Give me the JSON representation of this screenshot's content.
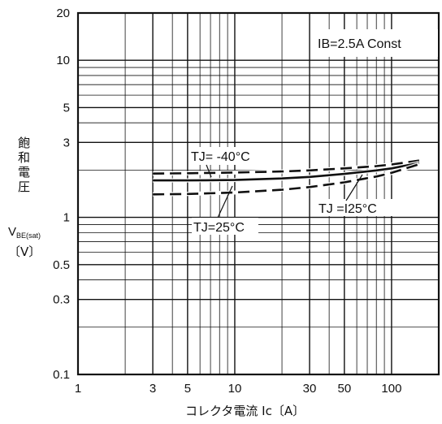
{
  "chart_data": {
    "type": "line",
    "title": "",
    "xlabel": "コレクタ電流 Ic〔A〕",
    "ylabel": [
      "飽",
      "和",
      "電",
      "圧"
    ],
    "ylabel_symbol": "V",
    "ylabel_subscript": "BE(sat)",
    "ylabel_unit": "〔V〕",
    "x_scale": "log",
    "y_scale": "log",
    "xlim": [
      1,
      200
    ],
    "ylim": [
      0.1,
      20
    ],
    "x_ticks": [
      {
        "value": 1,
        "label": "1"
      },
      {
        "value": 3,
        "label": "3"
      },
      {
        "value": 5,
        "label": "5"
      },
      {
        "value": 10,
        "label": "10"
      },
      {
        "value": 30,
        "label": "30"
      },
      {
        "value": 50,
        "label": "50"
      },
      {
        "value": 100,
        "label": "100"
      }
    ],
    "y_ticks": [
      {
        "value": 0.1,
        "label": "0.1"
      },
      {
        "value": 0.3,
        "label": "0.3"
      },
      {
        "value": 0.5,
        "label": "0.5"
      },
      {
        "value": 1,
        "label": "1"
      },
      {
        "value": 3,
        "label": "3"
      },
      {
        "value": 5,
        "label": "5"
      },
      {
        "value": 10,
        "label": "10"
      },
      {
        "value": 20,
        "label": "20"
      }
    ],
    "grid": true,
    "legend": "none",
    "condition_label": "IB=2.5A Const",
    "series": [
      {
        "name": "Tj=-40°C",
        "style": "dashed",
        "x": [
          3,
          5,
          10,
          20,
          30,
          50,
          80,
          100,
          150
        ],
        "y": [
          1.9,
          1.91,
          1.93,
          1.96,
          1.99,
          2.05,
          2.12,
          2.17,
          2.3
        ]
      },
      {
        "name": "Tj=25°C",
        "style": "solid",
        "x": [
          3,
          5,
          10,
          20,
          30,
          50,
          80,
          100,
          150
        ],
        "y": [
          1.72,
          1.72,
          1.73,
          1.77,
          1.81,
          1.89,
          1.99,
          2.05,
          2.22
        ]
      },
      {
        "name": "Tj=125°C",
        "style": "dashed",
        "x": [
          3,
          5,
          10,
          20,
          30,
          50,
          80,
          100,
          150
        ],
        "y": [
          1.4,
          1.41,
          1.44,
          1.5,
          1.56,
          1.67,
          1.82,
          1.92,
          2.18
        ]
      }
    ],
    "annotations": [
      {
        "text": "TJ= -40°C",
        "series": "Tj=-40°C"
      },
      {
        "text": "TJ=25°C",
        "series": "Tj=25°C"
      },
      {
        "text": "TJ =I25°C",
        "series": "Tj=125°C"
      }
    ]
  }
}
